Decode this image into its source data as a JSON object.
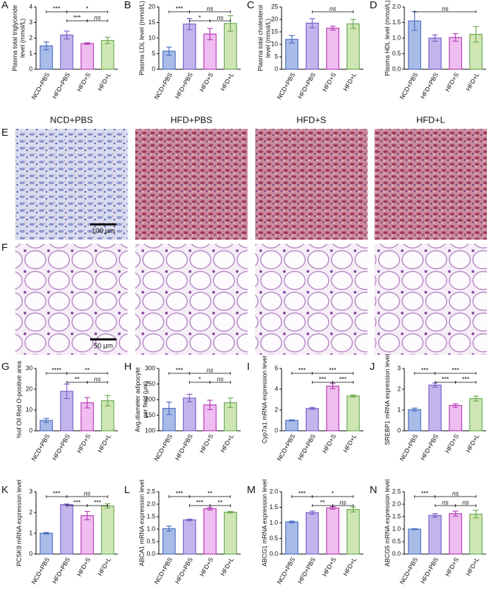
{
  "chart_data": [
    {
      "type": "bar",
      "panel": "A",
      "ylabel": [
        "Plasma total triglyceride",
        "level (mmol/L)"
      ],
      "categories": [
        "NCD+PBS",
        "HFD+PBS",
        "HFD+S",
        "HFD+L"
      ],
      "values": [
        1.5,
        2.2,
        1.65,
        1.85
      ],
      "errors": [
        0.25,
        0.25,
        0.05,
        0.2
      ],
      "colors": [
        "#a9bbe8",
        "#c2b5ec",
        "#efbdf0",
        "#cfe6b4"
      ],
      "edge_colors": [
        "#4a6fc4",
        "#7b5cc9",
        "#b43cb4",
        "#6aa84f"
      ],
      "ylim": [
        0,
        4
      ],
      "yticks": [
        0,
        1,
        2,
        3,
        4
      ],
      "comparisons": [
        {
          "pair": [
            0,
            1
          ],
          "label": "***"
        },
        {
          "pair": [
            1,
            3
          ],
          "label": "*"
        },
        {
          "pair": [
            1,
            2
          ],
          "label": "***"
        },
        {
          "pair": [
            2,
            3
          ],
          "label": "ns"
        }
      ]
    },
    {
      "type": "bar",
      "panel": "B",
      "ylabel": [
        "Plasma LDL level (mmol/L)"
      ],
      "categories": [
        "NCD+PBS",
        "HFD+PBS",
        "HFD+S",
        "HFD+L"
      ],
      "values": [
        5.8,
        14.5,
        11.3,
        14.7
      ],
      "errors": [
        1.3,
        1.8,
        1.8,
        2.5
      ],
      "colors": [
        "#a9bbe8",
        "#c2b5ec",
        "#efbdf0",
        "#cfe6b4"
      ],
      "edge_colors": [
        "#4a6fc4",
        "#7b5cc9",
        "#b43cb4",
        "#6aa84f"
      ],
      "ylim": [
        0,
        20
      ],
      "yticks": [
        0,
        5,
        10,
        15,
        20
      ],
      "comparisons": [
        {
          "pair": [
            0,
            1
          ],
          "label": "***"
        },
        {
          "pair": [
            1,
            3
          ],
          "label": "ns"
        },
        {
          "pair": [
            1,
            2
          ],
          "label": "*"
        },
        {
          "pair": [
            2,
            3
          ],
          "label": "ns"
        }
      ]
    },
    {
      "type": "bar",
      "panel": "C",
      "ylabel": [
        "Plasma total cholesterol",
        "level (mmol/L)"
      ],
      "categories": [
        "NCD+PBS",
        "HFD+PBS",
        "HFD+S",
        "HFD+L"
      ],
      "values": [
        12,
        18.5,
        16.5,
        18.2
      ],
      "errors": [
        1.5,
        1.8,
        0.8,
        1.8
      ],
      "colors": [
        "#a9bbe8",
        "#c2b5ec",
        "#efbdf0",
        "#cfe6b4"
      ],
      "edge_colors": [
        "#4a6fc4",
        "#7b5cc9",
        "#b43cb4",
        "#6aa84f"
      ],
      "ylim": [
        0,
        25
      ],
      "yticks": [
        0,
        5,
        10,
        15,
        20,
        25
      ],
      "comparisons": [
        {
          "pair": [
            1,
            3
          ],
          "label": "ns"
        }
      ]
    },
    {
      "type": "bar",
      "panel": "D",
      "ylabel": [
        "Plasma HDL level (mmol/L)"
      ],
      "categories": [
        "NCD+PBS",
        "HFD+PBS",
        "HFD+S",
        "HFD+L"
      ],
      "values": [
        1.55,
        1.0,
        1.02,
        1.12
      ],
      "errors": [
        0.3,
        0.1,
        0.12,
        0.25
      ],
      "colors": [
        "#a9bbe8",
        "#c2b5ec",
        "#efbdf0",
        "#cfe6b4"
      ],
      "edge_colors": [
        "#4a6fc4",
        "#7b5cc9",
        "#b43cb4",
        "#6aa84f"
      ],
      "ylim": [
        0,
        2
      ],
      "yticks": [
        {
          "value": 0,
          "label": "0.0"
        },
        0.5,
        {
          "value": 1,
          "label": "1.0"
        },
        1.5,
        {
          "value": 2,
          "label": "2.0"
        }
      ],
      "comparisons": [
        {
          "pair": [
            0,
            3
          ],
          "label": "ns"
        }
      ]
    },
    {
      "type": "bar",
      "panel": "G",
      "ylabel": [
        "%of Oil Red O-positive area"
      ],
      "categories": [
        "NCD+PBS",
        "HFD+PBS",
        "HFD+S",
        "HFD+L"
      ],
      "values": [
        5,
        19,
        13.5,
        14.5
      ],
      "errors": [
        1,
        3.5,
        2.5,
        2.5
      ],
      "colors": [
        "#a9bbe8",
        "#c2b5ec",
        "#efbdf0",
        "#cfe6b4"
      ],
      "edge_colors": [
        "#4a6fc4",
        "#7b5cc9",
        "#b43cb4",
        "#6aa84f"
      ],
      "ylim": [
        0,
        30
      ],
      "yticks": [
        0,
        10,
        20,
        30
      ],
      "comparisons": [
        {
          "pair": [
            0,
            1
          ],
          "label": "****"
        },
        {
          "pair": [
            1,
            3
          ],
          "label": "**"
        },
        {
          "pair": [
            1,
            2
          ],
          "label": "**"
        },
        {
          "pair": [
            2,
            3
          ],
          "label": "ns"
        }
      ]
    },
    {
      "type": "bar",
      "panel": "H",
      "ylabel": [
        "Avg.diameter adipocyte",
        "per field (μm)"
      ],
      "categories": [
        "NCD+PBS",
        "HFD+PBS",
        "HFD+S",
        "HFD+L"
      ],
      "values": [
        172,
        205,
        183,
        190
      ],
      "errors": [
        20,
        12,
        15,
        15
      ],
      "colors": [
        "#a9bbe8",
        "#c2b5ec",
        "#efbdf0",
        "#cfe6b4"
      ],
      "edge_colors": [
        "#4a6fc4",
        "#7b5cc9",
        "#b43cb4",
        "#6aa84f"
      ],
      "ylim": [
        100,
        300
      ],
      "yticks": [
        100,
        150,
        200,
        250,
        300
      ],
      "comparisons": [
        {
          "pair": [
            0,
            1
          ],
          "label": "***"
        },
        {
          "pair": [
            1,
            3
          ],
          "label": "ns"
        },
        {
          "pair": [
            1,
            2
          ],
          "label": "*"
        },
        {
          "pair": [
            2,
            3
          ],
          "label": "ns"
        }
      ]
    },
    {
      "type": "bar",
      "panel": "I",
      "ylabel": [
        "Cyp7a1 mRNA expression level"
      ],
      "categories": [
        "NCD+PBS",
        "HFD+PBS",
        "HFD+S",
        "HFD+L"
      ],
      "values": [
        1.0,
        2.15,
        4.3,
        3.35
      ],
      "errors": [
        0.05,
        0.1,
        0.25,
        0.1
      ],
      "colors": [
        "#a9bbe8",
        "#c2b5ec",
        "#efbdf0",
        "#cfe6b4"
      ],
      "edge_colors": [
        "#4a6fc4",
        "#7b5cc9",
        "#b43cb4",
        "#6aa84f"
      ],
      "ylim": [
        0,
        6
      ],
      "yticks": [
        0,
        2,
        4,
        6
      ],
      "comparisons": [
        {
          "pair": [
            0,
            1
          ],
          "label": "***"
        },
        {
          "pair": [
            1,
            3
          ],
          "label": "***"
        },
        {
          "pair": [
            1,
            2
          ],
          "label": "***"
        },
        {
          "pair": [
            2,
            3
          ],
          "label": "***"
        }
      ]
    },
    {
      "type": "bar",
      "panel": "J",
      "ylabel": [
        "SREBP1 mRNA expression level"
      ],
      "categories": [
        "NCD+PBS",
        "HFD+PBS",
        "HFD+S",
        "HFD+L"
      ],
      "values": [
        1.02,
        2.2,
        1.22,
        1.55
      ],
      "errors": [
        0.07,
        0.1,
        0.08,
        0.12
      ],
      "colors": [
        "#a9bbe8",
        "#c2b5ec",
        "#efbdf0",
        "#cfe6b4"
      ],
      "edge_colors": [
        "#4a6fc4",
        "#7b5cc9",
        "#b43cb4",
        "#6aa84f"
      ],
      "ylim": [
        0,
        3
      ],
      "yticks": [
        0,
        1,
        2,
        3
      ],
      "comparisons": [
        {
          "pair": [
            0,
            1
          ],
          "label": "***"
        },
        {
          "pair": [
            1,
            3
          ],
          "label": "***"
        },
        {
          "pair": [
            1,
            2
          ],
          "label": "***"
        },
        {
          "pair": [
            2,
            3
          ],
          "label": "***"
        }
      ]
    },
    {
      "type": "bar",
      "panel": "K",
      "ylabel": [
        "PCSK9 mRNA expression level"
      ],
      "categories": [
        "NCD+PBS",
        "HFD+PBS",
        "HFD+S",
        "HFD+L"
      ],
      "values": [
        1.0,
        2.38,
        1.85,
        2.32
      ],
      "errors": [
        0.04,
        0.03,
        0.2,
        0.1
      ],
      "colors": [
        "#a9bbe8",
        "#c2b5ec",
        "#efbdf0",
        "#cfe6b4"
      ],
      "edge_colors": [
        "#4a6fc4",
        "#7b5cc9",
        "#b43cb4",
        "#6aa84f"
      ],
      "ylim": [
        0,
        3
      ],
      "yticks": [
        0,
        1,
        2,
        3
      ],
      "comparisons": [
        {
          "pair": [
            0,
            1
          ],
          "label": "***"
        },
        {
          "pair": [
            1,
            3
          ],
          "label": "ns"
        },
        {
          "pair": [
            1,
            2
          ],
          "label": "***"
        },
        {
          "pair": [
            2,
            3
          ],
          "label": "***"
        }
      ]
    },
    {
      "type": "bar",
      "panel": "L",
      "ylabel": [
        "ABCA1 mRNA expression level"
      ],
      "categories": [
        "NCD+PBS",
        "HFD+PBS",
        "HFD+S",
        "HFD+L"
      ],
      "values": [
        1.02,
        1.37,
        1.82,
        1.68
      ],
      "errors": [
        0.1,
        0.03,
        0.05,
        0.03
      ],
      "colors": [
        "#a9bbe8",
        "#c2b5ec",
        "#efbdf0",
        "#cfe6b4"
      ],
      "edge_colors": [
        "#4a6fc4",
        "#7b5cc9",
        "#b43cb4",
        "#6aa84f"
      ],
      "ylim": [
        0,
        2.5
      ],
      "yticks": [
        {
          "value": 0,
          "label": "0.0"
        },
        0.5,
        {
          "value": 1,
          "label": "1.0"
        },
        1.5,
        {
          "value": 2,
          "label": "2.0"
        },
        2.5
      ],
      "comparisons": [
        {
          "pair": [
            0,
            1
          ],
          "label": "***"
        },
        {
          "pair": [
            1,
            3
          ],
          "label": "**"
        },
        {
          "pair": [
            1,
            2
          ],
          "label": "***"
        },
        {
          "pair": [
            2,
            3
          ],
          "label": "**"
        }
      ]
    },
    {
      "type": "bar",
      "panel": "M",
      "ylabel": [
        "ABCG1 mRNA expression level"
      ],
      "categories": [
        "NCD+PBS",
        "HFD+PBS",
        "HFD+S",
        "HFD+L"
      ],
      "values": [
        1.03,
        1.33,
        1.48,
        1.43
      ],
      "errors": [
        0.03,
        0.05,
        0.04,
        0.08
      ],
      "colors": [
        "#a9bbe8",
        "#c2b5ec",
        "#efbdf0",
        "#cfe6b4"
      ],
      "edge_colors": [
        "#4a6fc4",
        "#7b5cc9",
        "#b43cb4",
        "#6aa84f"
      ],
      "ylim": [
        0,
        2
      ],
      "yticks": [
        {
          "value": 0,
          "label": "0.0"
        },
        0.5,
        {
          "value": 1,
          "label": "1.0"
        },
        1.5,
        {
          "value": 2,
          "label": "2.0"
        }
      ],
      "comparisons": [
        {
          "pair": [
            0,
            1
          ],
          "label": "***"
        },
        {
          "pair": [
            1,
            3
          ],
          "label": "*"
        },
        {
          "pair": [
            1,
            2
          ],
          "label": "**"
        },
        {
          "pair": [
            2,
            3
          ],
          "label": "ns"
        }
      ]
    },
    {
      "type": "bar",
      "panel": "N",
      "ylabel": [
        "ABCG5 mRNA expression level"
      ],
      "categories": [
        "NCD+PBS",
        "HFD+PBS",
        "HFD+S",
        "HFD+L"
      ],
      "values": [
        1.0,
        1.55,
        1.62,
        1.6
      ],
      "errors": [
        0.02,
        0.07,
        0.1,
        0.15
      ],
      "colors": [
        "#a9bbe8",
        "#c2b5ec",
        "#efbdf0",
        "#cfe6b4"
      ],
      "edge_colors": [
        "#4a6fc4",
        "#7b5cc9",
        "#b43cb4",
        "#6aa84f"
      ],
      "ylim": [
        0,
        2.5
      ],
      "yticks": [
        {
          "value": 0,
          "label": "0.0"
        },
        0.5,
        {
          "value": 1,
          "label": "1.0"
        },
        1.5,
        {
          "value": 2,
          "label": "2.0"
        },
        2.5
      ],
      "comparisons": [
        {
          "pair": [
            0,
            1
          ],
          "label": "***"
        },
        {
          "pair": [
            1,
            3
          ],
          "label": "ns"
        },
        {
          "pair": [
            1,
            2
          ],
          "label": "ns"
        },
        {
          "pair": [
            2,
            3
          ],
          "label": "ns"
        }
      ]
    }
  ],
  "histology": {
    "columns": [
      "NCD+PBS",
      "HFD+PBS",
      "HFD+S",
      "HFD+L"
    ],
    "rows": [
      {
        "panel": "E",
        "scale_bar": "100 µm"
      },
      {
        "panel": "F",
        "scale_bar": "50 µm"
      }
    ]
  }
}
